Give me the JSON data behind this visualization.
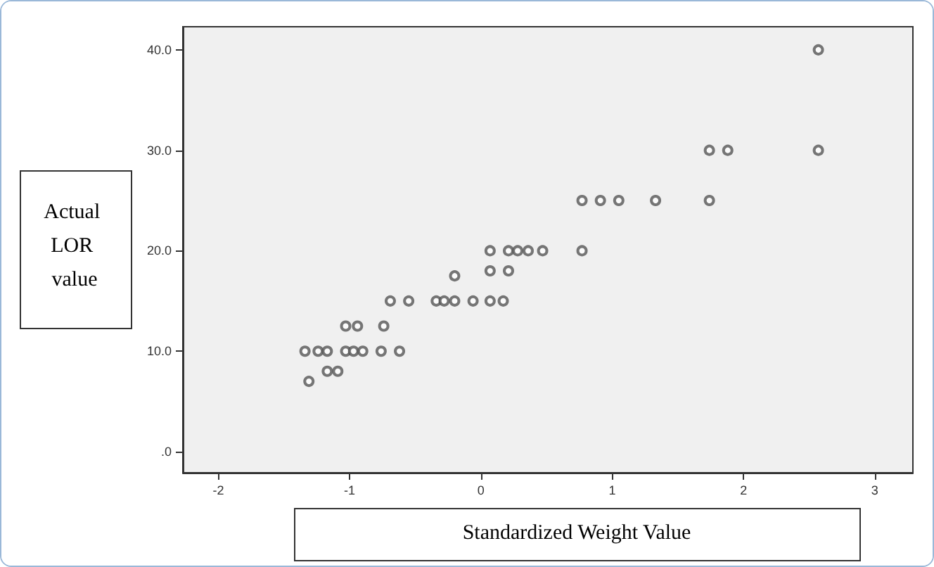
{
  "chart_data": {
    "type": "scatter",
    "xlabel": "Standardized Weight Value",
    "ylabel": "Actual LOR value",
    "x": [
      2.57,
      1.74,
      1.88,
      2.57,
      0.77,
      0.91,
      1.05,
      1.33,
      1.74,
      0.77,
      0.07,
      0.21,
      0.28,
      0.36,
      0.47,
      0.07,
      0.21,
      -0.2,
      -0.69,
      -0.55,
      -0.34,
      -0.28,
      -0.2,
      -0.06,
      0.07,
      0.17,
      -1.03,
      -0.94,
      -0.74,
      -1.34,
      -1.24,
      -1.17,
      -1.03,
      -0.97,
      -0.9,
      -0.76,
      -0.62,
      -1.17,
      -1.09,
      -1.31
    ],
    "values": [
      40,
      30,
      30,
      30,
      25,
      25,
      25,
      25,
      25,
      20,
      20,
      20,
      20,
      20,
      20,
      18,
      18,
      17.5,
      15,
      15,
      15,
      15,
      15,
      15,
      15,
      15,
      12.5,
      12.5,
      12.5,
      10,
      10,
      10,
      10,
      10,
      10,
      10,
      10,
      8,
      8,
      7
    ],
    "color": "#555555",
    "marker": "circle",
    "grid": false,
    "xlim": [
      -2.27,
      3.29
    ],
    "ylim": [
      -2.1,
      42.3
    ],
    "xticks": [
      -2,
      -1,
      0,
      1,
      2,
      3
    ],
    "yticks": [
      {
        "value": 0,
        "label": ".0"
      },
      {
        "value": 10,
        "label": "10.0"
      },
      {
        "value": 20,
        "label": "20.0"
      },
      {
        "value": 30,
        "label": "30.0"
      },
      {
        "value": 40,
        "label": "40.0"
      }
    ]
  }
}
